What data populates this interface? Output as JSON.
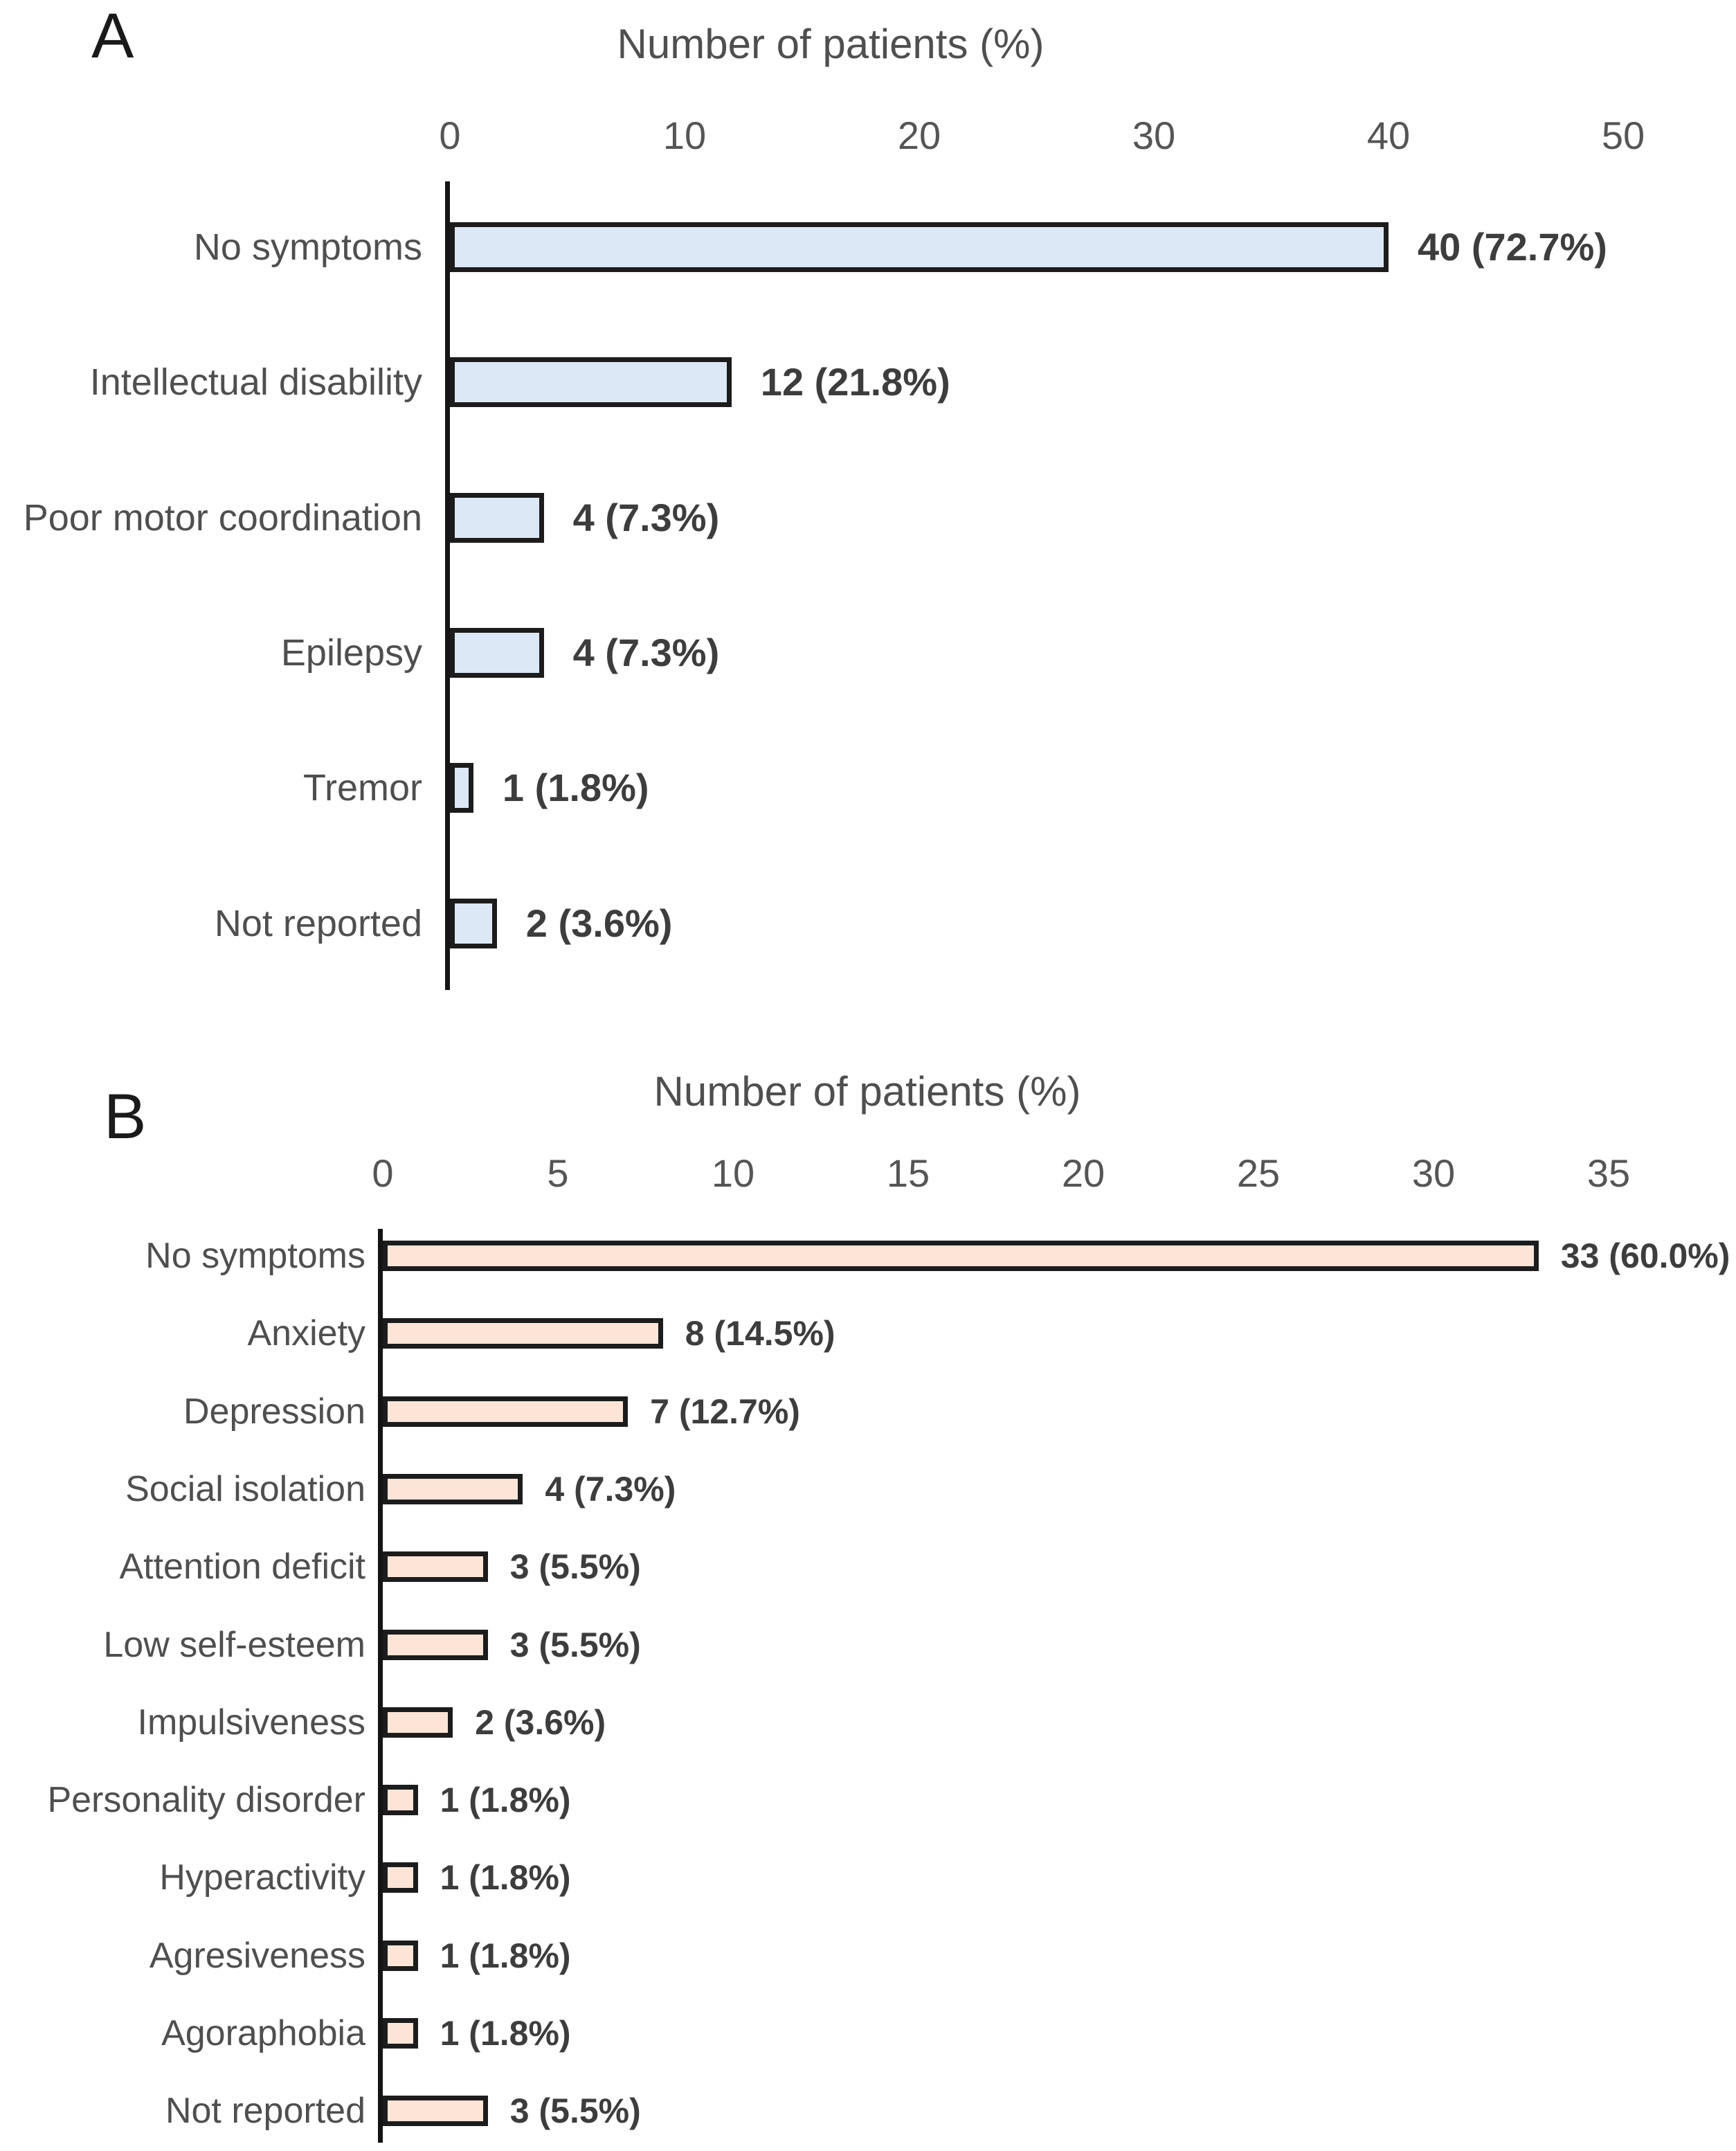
{
  "figure": {
    "background": "#ffffff"
  },
  "chart_data": [
    {
      "type": "bar",
      "orientation": "horizontal",
      "panel": "A",
      "title": "Number of patients (%)",
      "categories": [
        "No symptoms",
        "Intellectual disability",
        "Poor motor coordination",
        "Epilepsy",
        "Tremor",
        "Not reported"
      ],
      "values": [
        40,
        12,
        4,
        4,
        1,
        2
      ],
      "value_labels": [
        "40 (72.7%)",
        "12 (21.8%)",
        "4 (7.3%)",
        "4 (7.3%)",
        "1 (1.8%)",
        "2 (3.6%)"
      ],
      "xlim": [
        0,
        50
      ],
      "xticks": [
        0,
        10,
        20,
        30,
        40,
        50
      ],
      "grid": false,
      "axis_side": "top",
      "bar_fill": "#dce8f5",
      "bar_border": "#1c1c1c"
    },
    {
      "type": "bar",
      "orientation": "horizontal",
      "panel": "B",
      "title": "Number of patients (%)",
      "categories": [
        "No symptoms",
        "Anxiety",
        "Depression",
        "Social isolation",
        "Attention deficit",
        "Low self-esteem",
        "Impulsiveness",
        "Personality disorder",
        "Hyperactivity",
        "Agresiveness",
        "Agoraphobia",
        "Not reported"
      ],
      "values": [
        33,
        8,
        7,
        4,
        3,
        3,
        2,
        1,
        1,
        1,
        1,
        3
      ],
      "value_labels": [
        "33 (60.0%)",
        "8 (14.5%)",
        "7 (12.7%)",
        "4 (7.3%)",
        "3 (5.5%)",
        "3 (5.5%)",
        "2 (3.6%)",
        "1 (1.8%)",
        "1 (1.8%)",
        "1 (1.8%)",
        "1 (1.8%)",
        "3 (5.5%)"
      ],
      "xlim": [
        0,
        35
      ],
      "xticks": [
        0,
        5,
        10,
        15,
        20,
        25,
        30,
        35
      ],
      "grid": false,
      "axis_side": "top",
      "bar_fill": "#fce4d6",
      "bar_border": "#1c1c1c"
    }
  ]
}
